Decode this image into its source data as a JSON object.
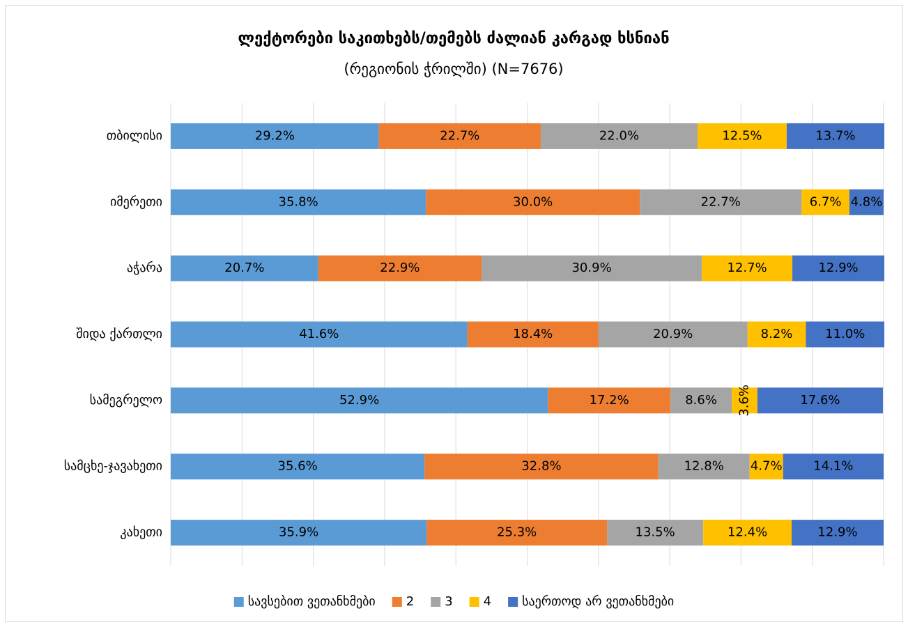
{
  "chart_data": {
    "type": "stacked_barh",
    "title": "ლექტორები საკითხებს/თემებს ძალიან კარგად ხსნიან",
    "subtitle": "(რეგიონის ჭრილში) (N=7676)",
    "categories": [
      "თბილისი",
      "იმერეთი",
      "აჭარა",
      "შიდა ქართლი",
      "სამეგრელო",
      "სამცხე-ჯავახეთი",
      "კახეთი"
    ],
    "series": [
      {
        "name": "სავსებით ვეთანხმები",
        "color": "#5b9bd5",
        "values": [
          29.2,
          35.8,
          20.7,
          41.6,
          52.9,
          35.6,
          35.9
        ],
        "value_labels": [
          "29.2%",
          "35.8%",
          "20.7%",
          "41.6%",
          "52.9%",
          "35.6%",
          "35.9%"
        ]
      },
      {
        "name": "2",
        "color": "#ed7d31",
        "values": [
          22.7,
          30.0,
          22.9,
          18.4,
          17.2,
          32.8,
          25.3
        ],
        "value_labels": [
          "22.7%",
          "30.0%",
          "22.9%",
          "18.4%",
          "17.2%",
          "32.8%",
          "25.3%"
        ]
      },
      {
        "name": "3",
        "color": "#a5a5a5",
        "values": [
          22.0,
          22.7,
          30.9,
          20.9,
          8.6,
          12.8,
          13.5
        ],
        "value_labels": [
          "22.0%",
          "22.7%",
          "30.9%",
          "20.9%",
          "8.6%",
          "12.8%",
          "13.5%"
        ]
      },
      {
        "name": "4",
        "color": "#ffc000",
        "values": [
          12.5,
          6.7,
          12.7,
          8.2,
          3.6,
          4.7,
          12.4
        ],
        "value_labels": [
          "12.5%",
          "6.7%",
          "12.7%",
          "8.2%",
          "3.6%",
          "4.7%",
          "12.4%"
        ]
      },
      {
        "name": "საერთოდ არ ვეთანხმები",
        "color": "#4472c4",
        "values": [
          13.7,
          4.8,
          12.9,
          11.0,
          17.6,
          14.1,
          12.9
        ],
        "value_labels": [
          "13.7%",
          "4.8%",
          "12.9%",
          "11.0%",
          "17.6%",
          "14.1%",
          "12.9%"
        ]
      }
    ],
    "xlim": [
      0,
      100
    ],
    "xticks": [
      0,
      10,
      20,
      30,
      40,
      50,
      60,
      70,
      80,
      90,
      100
    ],
    "grid": true,
    "legend": "bottom"
  }
}
